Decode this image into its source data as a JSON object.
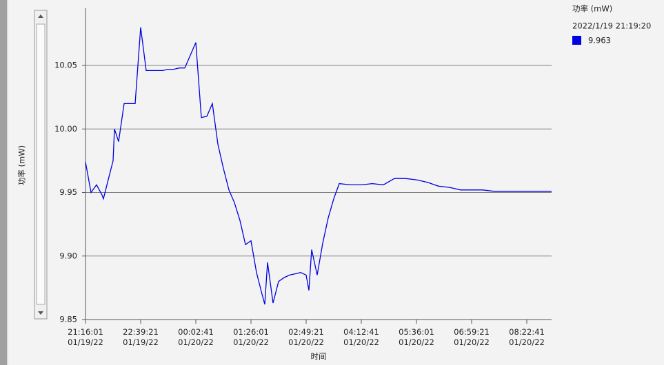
{
  "chart_data": {
    "type": "line",
    "y_label": "功率 (mW)",
    "x_label": "时间",
    "legend": {
      "title": "功率 (mW)",
      "timestamp": "2022/1/19 21:19:20",
      "value": "9.963"
    },
    "grid": true,
    "xlim": [
      "2022-01-19T21:16:01",
      "2022-01-20T09:00:11"
    ],
    "ylim": [
      9.85,
      10.095
    ],
    "yticks": [
      9.85,
      {
        "value": 9.9,
        "label": "9.90"
      },
      9.95,
      {
        "value": 10.0,
        "label": "10.00"
      },
      {
        "value": 10.05,
        "label": "10.05"
      }
    ],
    "xticks": [
      {
        "value": "2022-01-19T21:16:01",
        "label": "21:16:01 01/19/22"
      },
      {
        "value": "2022-01-19T22:39:21",
        "label": "22:39:21 01/19/22"
      },
      {
        "value": "2022-01-20T00:02:41",
        "label": "00:02:41 01/20/22"
      },
      {
        "value": "2022-01-20T01:26:01",
        "label": "01:26:01 01/20/22"
      },
      {
        "value": "2022-01-20T02:49:21",
        "label": "02:49:21 01/20/22"
      },
      {
        "value": "2022-01-20T04:12:41",
        "label": "04:12:41 01/20/22"
      },
      {
        "value": "2022-01-20T05:36:01",
        "label": "05:36:01 01/20/22"
      },
      {
        "value": "2022-01-20T06:59:21",
        "label": "06:59:21 01/20/22"
      },
      {
        "value": "2022-01-20T08:22:41",
        "label": "08:22:41 01/20/22"
      }
    ],
    "x": [
      "2022-01-19T21:16:01",
      "2022-01-19T21:24:21",
      "2022-01-19T21:32:41",
      "2022-01-19T21:41:01",
      "2022-01-19T21:43:06",
      "2022-01-19T21:49:21",
      "2022-01-19T21:57:41",
      "2022-01-19T21:59:46",
      "2022-01-19T22:06:01",
      "2022-01-19T22:14:21",
      "2022-01-19T22:22:41",
      "2022-01-19T22:31:01",
      "2022-01-19T22:39:21",
      "2022-01-19T22:47:41",
      "2022-01-19T22:56:01",
      "2022-01-19T23:04:21",
      "2022-01-19T23:12:41",
      "2022-01-19T23:21:01",
      "2022-01-19T23:29:21",
      "2022-01-19T23:37:41",
      "2022-01-19T23:46:01",
      "2022-01-19T23:54:21",
      "2022-01-20T00:02:41",
      "2022-01-20T00:11:01",
      "2022-01-20T00:19:21",
      "2022-01-20T00:27:41",
      "2022-01-20T00:36:01",
      "2022-01-20T00:44:21",
      "2022-01-20T00:52:41",
      "2022-01-20T01:01:01",
      "2022-01-20T01:09:21",
      "2022-01-20T01:17:41",
      "2022-01-20T01:26:01",
      "2022-01-20T01:34:21",
      "2022-01-20T01:42:41",
      "2022-01-20T01:46:51",
      "2022-01-20T01:51:01",
      "2022-01-20T01:59:21",
      "2022-01-20T02:07:41",
      "2022-01-20T02:16:01",
      "2022-01-20T02:24:21",
      "2022-01-20T02:32:41",
      "2022-01-20T02:41:01",
      "2022-01-20T02:49:21",
      "2022-01-20T02:53:31",
      "2022-01-20T02:57:41",
      "2022-01-20T03:06:01",
      "2022-01-20T03:14:21",
      "2022-01-20T03:22:41",
      "2022-01-20T03:31:01",
      "2022-01-20T03:39:21",
      "2022-01-20T03:56:01",
      "2022-01-20T04:12:41",
      "2022-01-20T04:29:21",
      "2022-01-20T04:46:01",
      "2022-01-20T05:02:41",
      "2022-01-20T05:19:21",
      "2022-01-20T05:36:01",
      "2022-01-20T05:52:41",
      "2022-01-20T06:09:21",
      "2022-01-20T06:26:01",
      "2022-01-20T06:42:41",
      "2022-01-20T06:59:21",
      "2022-01-20T07:16:01",
      "2022-01-20T07:32:41",
      "2022-01-20T07:49:21",
      "2022-01-20T08:06:01",
      "2022-01-20T08:22:41",
      "2022-01-20T08:39:21",
      "2022-01-20T09:00:11"
    ],
    "series": [
      {
        "name": "功率 (mW)",
        "color": "#0000e0",
        "values": [
          9.974,
          9.95,
          9.956,
          9.948,
          9.945,
          9.958,
          9.975,
          10.0,
          9.99,
          10.02,
          10.02,
          10.02,
          10.08,
          10.046,
          10.046,
          10.046,
          10.046,
          10.047,
          10.047,
          10.048,
          10.048,
          10.058,
          10.068,
          10.009,
          10.01,
          10.02,
          9.988,
          9.969,
          9.952,
          9.942,
          9.928,
          9.909,
          9.912,
          9.887,
          9.87,
          9.862,
          9.895,
          9.863,
          9.88,
          9.883,
          9.885,
          9.886,
          9.887,
          9.885,
          9.873,
          9.905,
          9.885,
          9.91,
          9.93,
          9.945,
          9.957,
          9.956,
          9.956,
          9.957,
          9.956,
          9.961,
          9.961,
          9.96,
          9.958,
          9.955,
          9.954,
          9.952,
          9.952,
          9.952,
          9.951,
          9.951,
          9.951,
          9.951,
          9.951,
          9.951
        ]
      }
    ]
  }
}
